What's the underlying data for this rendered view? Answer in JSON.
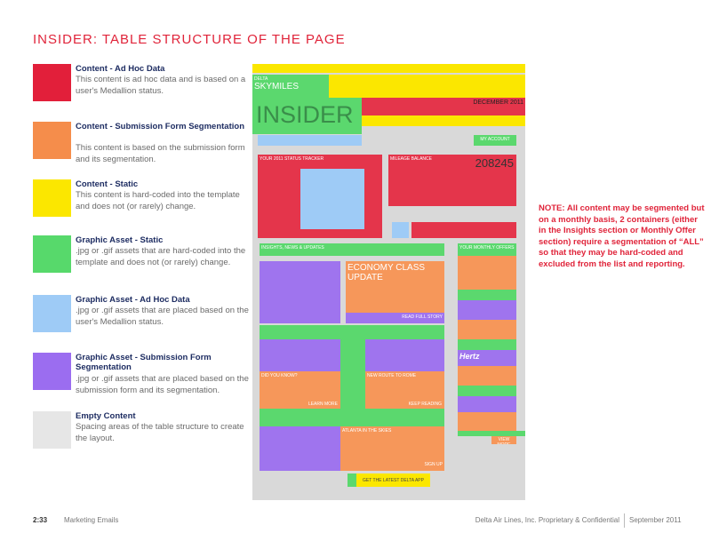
{
  "header": {
    "title": "INSIDER: TABLE STRUCTURE OF THE PAGE"
  },
  "legend": [
    {
      "title": "Content - Ad Hoc Data",
      "description": "This content is ad hoc data and is based on a user's Medallion status.",
      "color": "#e21f3a"
    },
    {
      "title": "Content - Submission Form Segmentation",
      "description": "This content is based on the submission form and its segmentation.",
      "color": "#f58d4b"
    },
    {
      "title": "Content - Static",
      "description": "This content is hard-coded into the template and does not (or rarely) change.",
      "color": "#fbe700"
    },
    {
      "title": "Graphic Asset - Static",
      "description": ".jpg or .gif assets that are hard-coded into the template and does not (or rarely) change.",
      "color": "#57d96b"
    },
    {
      "title": "Graphic Asset - Ad Hoc Data",
      "description": ".jpg or .gif assets that are placed based on the user's Medallion status.",
      "color": "#9ecbf6"
    },
    {
      "title": "Graphic Asset - Submission Form Segmentation",
      "description": ".jpg or .gif assets that are placed based on the submission form and its segmentation.",
      "color": "#9b6df0"
    },
    {
      "title": "Empty Content",
      "description": "Spacing areas of the table structure to create the layout.",
      "color": "#e6e6e6"
    }
  ],
  "note": "NOTE: All content may be segmented but on a monthly basis, 2 containers (either in the Insights section or Monthly Offer section) require a segmentation of “ALL” so that they may be hard-coded and excluded from the list and reporting.",
  "mockup": {
    "brand": "DELTA",
    "program": "SKYMILES",
    "masthead": "INSIDER",
    "date": "DECEMBER 2011",
    "account": "MY ACCOUNT",
    "tracker": "YOUR 2011 STATUS TRACKER",
    "balance_title": "MILEAGE BALANCE",
    "balance": "208245",
    "insights": "INSIGHTS, NEWS & UPDATES",
    "offers": "YOUR MONTHLY OFFERS",
    "feature_title": "ECONOMY CLASS UPDATE",
    "feature_cta": "READ FULL STORY",
    "story1": "DID YOU KNOW?",
    "story1_cta": "LEARN MORE",
    "story2": "NEW ROUTE TO ROME",
    "story2_cta": "KEEP READING",
    "story3": "ATLANTA IN THE SKIES",
    "story3_cta": "SIGN UP",
    "offer_brand": "Hertz",
    "more": "VIEW MORE",
    "app": "GET THE LATEST DELTA APP"
  },
  "footer": {
    "page": "2:33",
    "section": "Marketing Emails",
    "company": "Delta Air Lines, Inc. Proprietary & Confidential",
    "date": "September 2011"
  }
}
